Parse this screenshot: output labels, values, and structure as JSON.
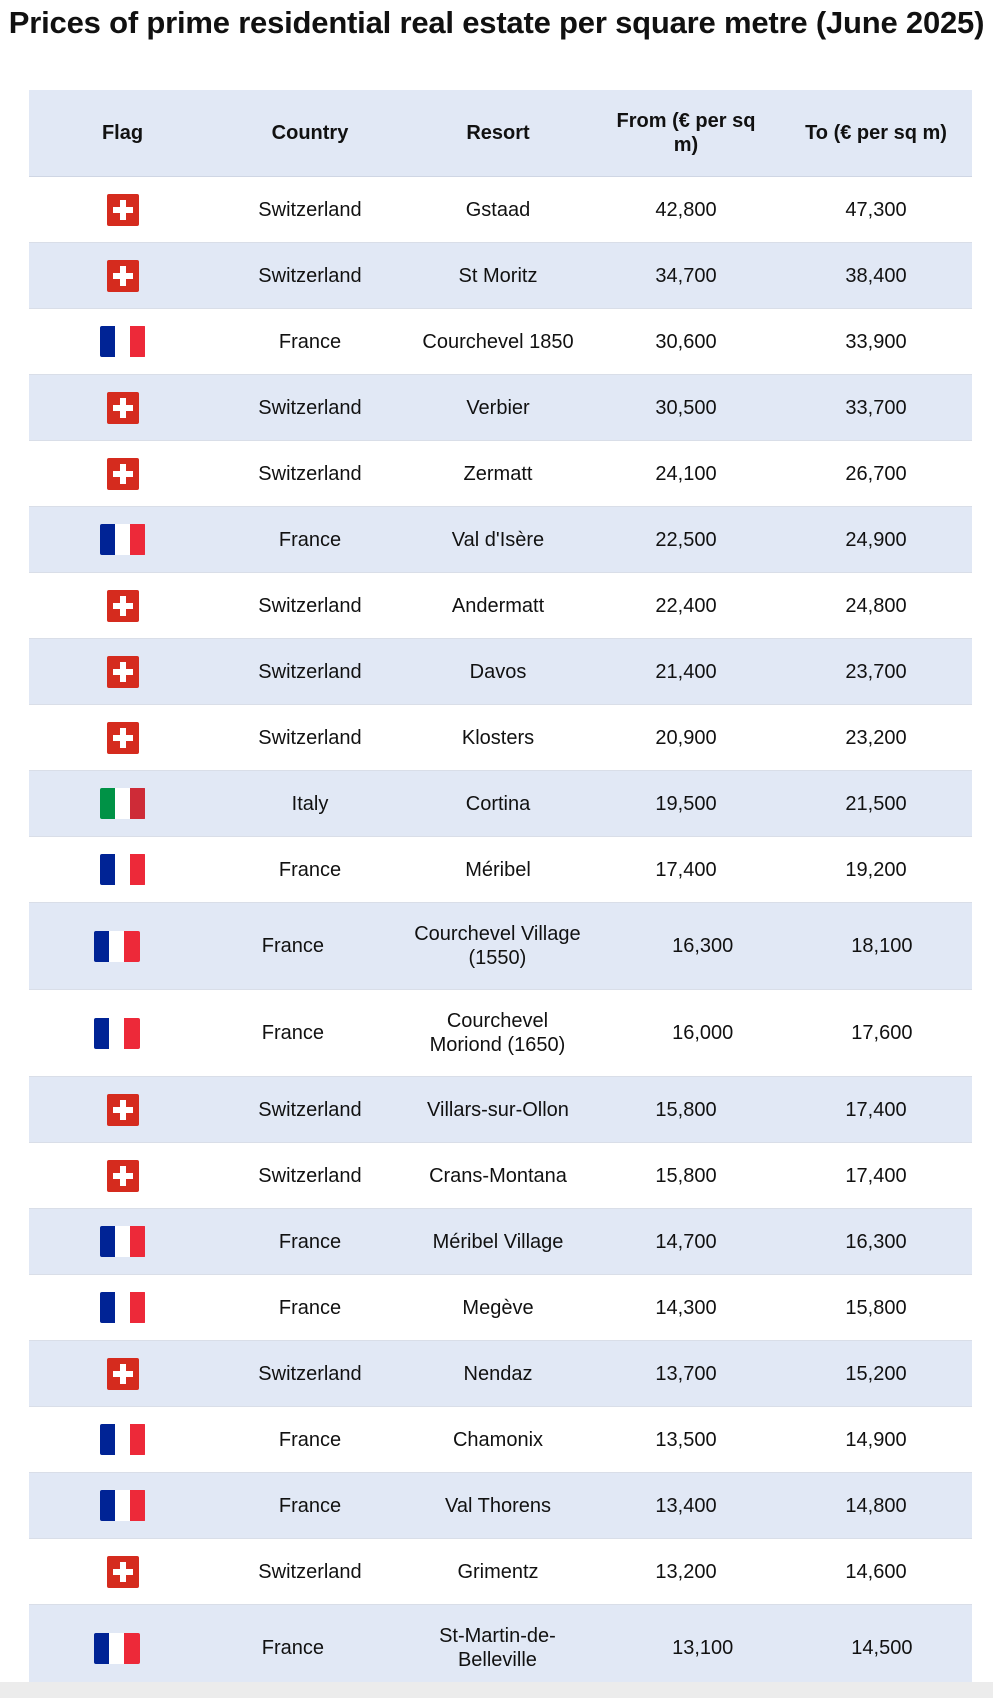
{
  "title": "Prices of prime residential real estate per square metre (June 2025)",
  "columns": [
    "Flag",
    "Country",
    "Resort",
    "From (€ per sq m)",
    "To (€ per sq m)"
  ],
  "flag_colors": {
    "switzerland": [
      "#d52b1e",
      "#ffffff"
    ],
    "france": [
      "#002395",
      "#ffffff",
      "#ed2939"
    ],
    "italy": [
      "#009246",
      "#ffffff",
      "#ce2b37"
    ]
  },
  "rows": [
    {
      "flag": "switzerland",
      "country": "Switzerland",
      "resort": "Gstaad",
      "from": "42,800",
      "to": "47,300"
    },
    {
      "flag": "switzerland",
      "country": "Switzerland",
      "resort": "St Moritz",
      "from": "34,700",
      "to": "38,400"
    },
    {
      "flag": "france",
      "country": "France",
      "resort": "Courchevel 1850",
      "from": "30,600",
      "to": "33,900"
    },
    {
      "flag": "switzerland",
      "country": "Switzerland",
      "resort": "Verbier",
      "from": "30,500",
      "to": "33,700"
    },
    {
      "flag": "switzerland",
      "country": "Switzerland",
      "resort": "Zermatt",
      "from": "24,100",
      "to": "26,700"
    },
    {
      "flag": "france",
      "country": "France",
      "resort": "Val d'Isère",
      "from": "22,500",
      "to": "24,900"
    },
    {
      "flag": "switzerland",
      "country": "Switzerland",
      "resort": "Andermatt",
      "from": "22,400",
      "to": "24,800"
    },
    {
      "flag": "switzerland",
      "country": "Switzerland",
      "resort": "Davos",
      "from": "21,400",
      "to": "23,700"
    },
    {
      "flag": "switzerland",
      "country": "Switzerland",
      "resort": "Klosters",
      "from": "20,900",
      "to": "23,200"
    },
    {
      "flag": "italy",
      "country": "Italy",
      "resort": "Cortina",
      "from": "19,500",
      "to": "21,500"
    },
    {
      "flag": "france",
      "country": "France",
      "resort": "Méribel",
      "from": "17,400",
      "to": "19,200"
    },
    {
      "flag": "france",
      "country": "France",
      "resort": "Courchevel Village (1550)",
      "from": "16,300",
      "to": "18,100"
    },
    {
      "flag": "france",
      "country": "France",
      "resort": "Courchevel Moriond (1650)",
      "from": "16,000",
      "to": "17,600"
    },
    {
      "flag": "switzerland",
      "country": "Switzerland",
      "resort": "Villars-sur-Ollon",
      "from": "15,800",
      "to": "17,400"
    },
    {
      "flag": "switzerland",
      "country": "Switzerland",
      "resort": "Crans-Montana",
      "from": "15,800",
      "to": "17,400"
    },
    {
      "flag": "france",
      "country": "France",
      "resort": "Méribel Village",
      "from": "14,700",
      "to": "16,300"
    },
    {
      "flag": "france",
      "country": "France",
      "resort": "Megève",
      "from": "14,300",
      "to": "15,800"
    },
    {
      "flag": "switzerland",
      "country": "Switzerland",
      "resort": "Nendaz",
      "from": "13,700",
      "to": "15,200"
    },
    {
      "flag": "france",
      "country": "France",
      "resort": "Chamonix",
      "from": "13,500",
      "to": "14,900"
    },
    {
      "flag": "france",
      "country": "France",
      "resort": "Val Thorens",
      "from": "13,400",
      "to": "14,800"
    },
    {
      "flag": "switzerland",
      "country": "Switzerland",
      "resort": "Grimentz",
      "from": "13,200",
      "to": "14,600"
    },
    {
      "flag": "france",
      "country": "France",
      "resort": "St-Martin-de-Belleville",
      "from": "13,100",
      "to": "14,500"
    }
  ]
}
